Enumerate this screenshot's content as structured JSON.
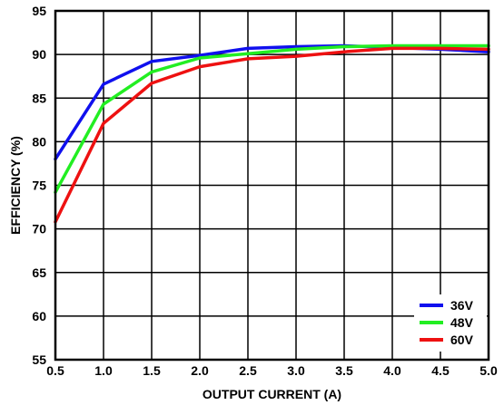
{
  "chart_data": {
    "type": "line",
    "title": "",
    "xlabel": "OUTPUT CURRENT (A)",
    "ylabel": "EFFICIENCY (%)",
    "xlim": [
      0.5,
      5.0
    ],
    "ylim": [
      55,
      95
    ],
    "xticks": [
      "0.5",
      "1.0",
      "1.5",
      "2.0",
      "2.5",
      "3.0",
      "3.5",
      "4.0",
      "4.5",
      "5.0"
    ],
    "yticks": [
      "55",
      "60",
      "65",
      "70",
      "75",
      "80",
      "85",
      "90",
      "95"
    ],
    "grid": true,
    "legend": "bottom-right",
    "x": [
      0.5,
      1.0,
      1.5,
      2.0,
      2.5,
      3.0,
      3.5,
      4.0,
      4.5,
      5.0
    ],
    "series": [
      {
        "name": "36V",
        "color": "#1010ee",
        "values": [
          78.0,
          86.6,
          89.2,
          89.9,
          90.7,
          90.9,
          91.0,
          90.8,
          90.6,
          90.3
        ]
      },
      {
        "name": "48V",
        "color": "#22ee22",
        "values": [
          74.2,
          84.3,
          88.0,
          89.6,
          90.1,
          90.6,
          90.9,
          91.0,
          91.0,
          91.0
        ]
      },
      {
        "name": "60V",
        "color": "#ee1111",
        "values": [
          70.8,
          82.1,
          86.7,
          88.6,
          89.5,
          89.8,
          90.3,
          90.7,
          90.7,
          90.6
        ]
      }
    ]
  }
}
